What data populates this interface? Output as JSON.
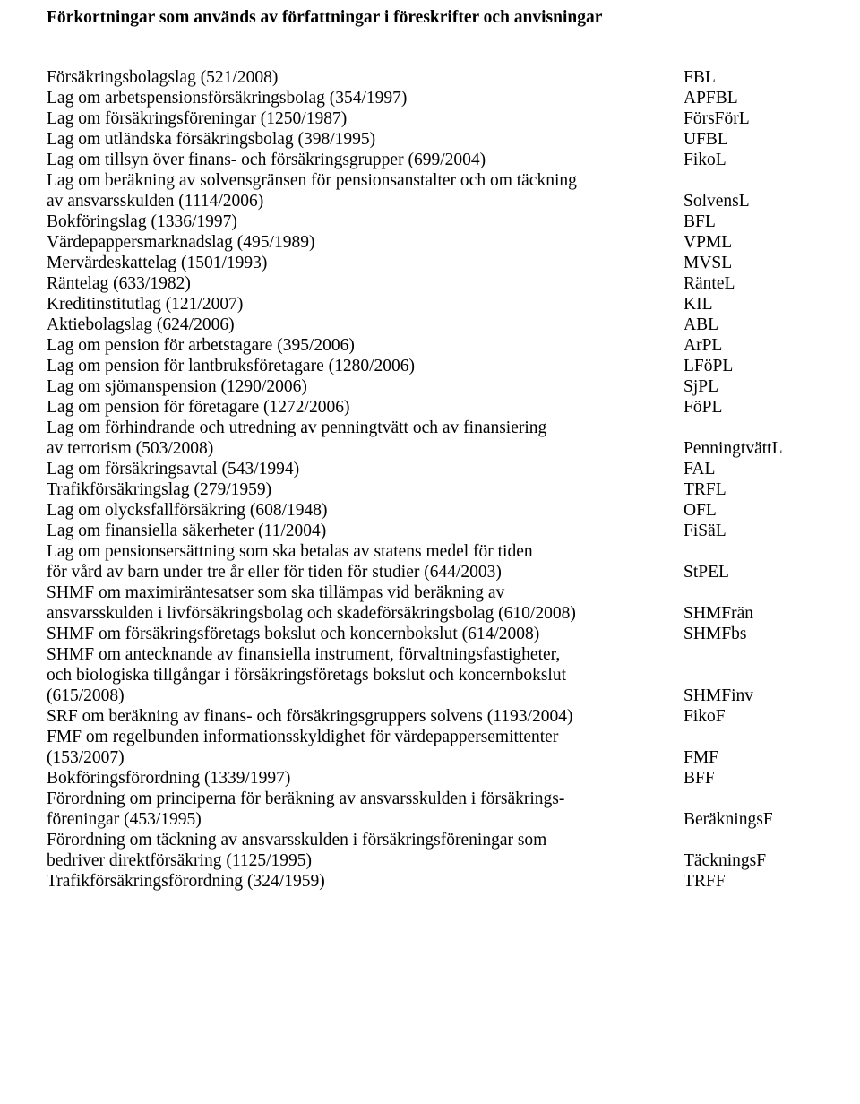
{
  "title": "Förkortningar som används av författningar i föreskrifter och anvisningar",
  "rows": [
    {
      "label": "Försäkringsbolagslag (521/2008)",
      "abbr": "FBL"
    },
    {
      "label": "Lag om arbetspensionsförsäkringsbolag (354/1997)",
      "abbr": "APFBL"
    },
    {
      "label": "Lag om försäkringsföreningar (1250/1987)",
      "abbr": "FörsFörL"
    },
    {
      "label": "Lag om utländska försäkringsbolag (398/1995)",
      "abbr": "UFBL"
    },
    {
      "label": "Lag om tillsyn över finans- och försäkringsgrupper (699/2004)",
      "abbr": "FikoL"
    },
    {
      "label": "Lag om beräkning av solvensgränsen för pensionsanstalter och om täckning",
      "abbr": null
    },
    {
      "label": "av ansvarsskulden (1114/2006)",
      "abbr": "SolvensL"
    },
    {
      "label": "Bokföringslag (1336/1997)",
      "abbr": "BFL"
    },
    {
      "label": "Värdepappersmarknadslag (495/1989)",
      "abbr": "VPML"
    },
    {
      "label": "Mervärdeskattelag (1501/1993)",
      "abbr": "MVSL"
    },
    {
      "label": "Räntelag (633/1982)",
      "abbr": "RänteL"
    },
    {
      "label": "Kreditinstitutlag (121/2007)",
      "abbr": "KIL"
    },
    {
      "label": "Aktiebolagslag (624/2006)",
      "abbr": "ABL"
    },
    {
      "label": "Lag om pension för arbetstagare (395/2006)",
      "abbr": "ArPL"
    },
    {
      "label": "Lag om pension för lantbruksföretagare (1280/2006)",
      "abbr": "LFöPL"
    },
    {
      "label": "Lag om sjömanspension (1290/2006)",
      "abbr": "SjPL"
    },
    {
      "label": "Lag om pension för företagare (1272/2006)",
      "abbr": "FöPL"
    },
    {
      "label": "Lag om förhindrande och utredning av penningtvätt och av finansiering",
      "abbr": null
    },
    {
      "label": "av terrorism (503/2008)",
      "abbr": "PenningtvättL"
    },
    {
      "label": "Lag om försäkringsavtal (543/1994)",
      "abbr": "FAL"
    },
    {
      "label": "Trafikförsäkringslag (279/1959)",
      "abbr": "TRFL"
    },
    {
      "label": "Lag om olycksfallförsäkring (608/1948)",
      "abbr": "OFL"
    },
    {
      "label": "Lag om finansiella säkerheter (11/2004)",
      "abbr": "FiSäL"
    },
    {
      "label": "Lag om pensionsersättning som ska betalas av statens medel för tiden",
      "abbr": null
    },
    {
      "label": "för vård av barn under tre år eller för tiden för studier (644/2003)",
      "abbr": "StPEL"
    },
    {
      "label": "SHMF om maximiräntesatser som ska tillämpas vid beräkning av",
      "abbr": null
    },
    {
      "label": "ansvarsskulden i livförsäkringsbolag och skadeförsäkringsbolag (610/2008)",
      "abbr": "SHMFrän"
    },
    {
      "label": "SHMF om försäkringsföretags bokslut och koncernbokslut (614/2008)",
      "abbr": "SHMFbs"
    },
    {
      "label": "SHMF om antecknande av finansiella instrument, förvaltningsfastigheter,",
      "abbr": null
    },
    {
      "label": "och biologiska tillgångar i försäkringsföretags bokslut och koncernbokslut",
      "abbr": null
    },
    {
      "label": "(615/2008)",
      "abbr": "SHMFinv"
    },
    {
      "label": "SRF om beräkning av finans- och försäkringsgruppers solvens (1193/2004)",
      "abbr": "FikoF"
    },
    {
      "label": "FMF om regelbunden informationsskyldighet för värdepappersemittenter",
      "abbr": null
    },
    {
      "label": "(153/2007)",
      "abbr": "FMF"
    },
    {
      "label": "Bokföringsförordning (1339/1997)",
      "abbr": "BFF"
    },
    {
      "label": "Förordning om principerna för beräkning av ansvarsskulden i försäkrings-",
      "abbr": null
    },
    {
      "label": "föreningar (453/1995)",
      "abbr": "BeräkningsF"
    },
    {
      "label": "Förordning om täckning av ansvarsskulden i försäkringsföreningar som",
      "abbr": null
    },
    {
      "label": "bedriver direktförsäkring (1125/1995)",
      "abbr": "TäckningsF"
    },
    {
      "label": "Trafikförsäkringsförordning (324/1959)",
      "abbr": "TRFF"
    }
  ]
}
